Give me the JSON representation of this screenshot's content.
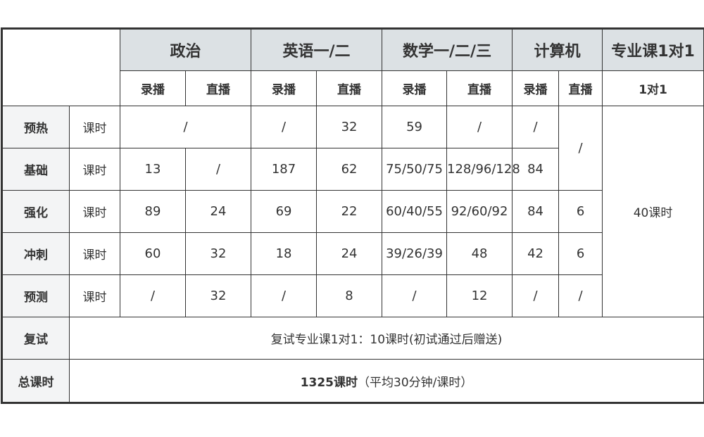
{
  "header": {
    "subjects": [
      "政治",
      "英语一/二",
      "数学一/二/三",
      "计算机",
      "专业课1对1"
    ],
    "modes": [
      "录播",
      "直播",
      "录播",
      "直播",
      "录播",
      "直播",
      "录播",
      "直播",
      "1对1"
    ]
  },
  "rows": [
    {
      "stage": "预热",
      "unit": "课时",
      "politics": "/",
      "english_rec": "/",
      "english_live": "32",
      "math_rec": "59",
      "math_live": "/",
      "cs_rec": "/",
      "cs_live": "/",
      "major": "40课时"
    },
    {
      "stage": "基础",
      "unit": "课时",
      "politics_rec": "13",
      "politics_live": "/",
      "english_rec": "187",
      "english_live": "62",
      "math_rec": "75/50/75",
      "math_live": "128/96/128",
      "cs_rec": "84"
    },
    {
      "stage": "强化",
      "unit": "课时",
      "politics_rec": "89",
      "politics_live": "24",
      "english_rec": "69",
      "english_live": "22",
      "math_rec": "60/40/55",
      "math_live": "92/60/92",
      "cs_rec": "84",
      "cs_live": "6"
    },
    {
      "stage": "冲刺",
      "unit": "课时",
      "politics_rec": "60",
      "politics_live": "32",
      "english_rec": "18",
      "english_live": "24",
      "math_rec": "39/26/39",
      "math_live": "48",
      "cs_rec": "42",
      "cs_live": "6"
    },
    {
      "stage": "预测",
      "unit": "课时",
      "politics_rec": "/",
      "politics_live": "32",
      "english_rec": "/",
      "english_live": "8",
      "math_rec": "/",
      "math_live": "12",
      "cs_rec": "/",
      "cs_live": "/"
    }
  ],
  "retest": {
    "label": "复试",
    "text": "复试专业课1对1：10课时(初试通过后赠送)"
  },
  "total": {
    "label": "总课时",
    "value": "1325课时",
    "note": "（平均30分钟/课时）"
  },
  "colors": {
    "header_bg": "#dce1e4",
    "label_bg": "#f3f4f5",
    "border": "#333333"
  }
}
